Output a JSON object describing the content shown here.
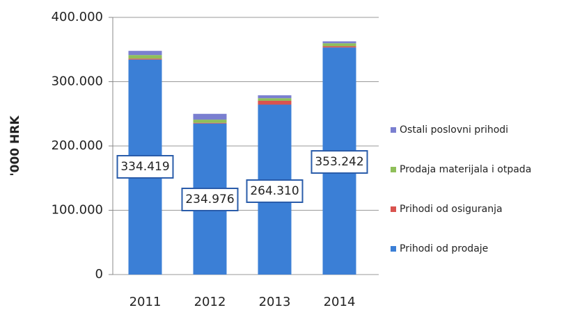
{
  "chart_data": {
    "type": "bar",
    "stacked": true,
    "y_label": "'000 HRK",
    "categories": [
      "2011",
      "2012",
      "2013",
      "2014"
    ],
    "series": [
      {
        "name": "Prihodi od prodaje",
        "color": "#3b7fd6",
        "values": [
          334419,
          234976,
          264310,
          353242
        ],
        "value_labels": [
          "334.419",
          "234.976",
          "264.310",
          "353.242"
        ]
      },
      {
        "name": "Prihodi od osiguranja",
        "color": "#d9534f",
        "values": [
          1500,
          1000,
          6000,
          2000
        ]
      },
      {
        "name": "Prodaja materijala i otpada",
        "color": "#8fbf5a",
        "values": [
          5500,
          5000,
          4000,
          4500
        ]
      },
      {
        "name": "Ostali poslovni prihodi",
        "color": "#7a7fd0",
        "values": [
          6500,
          9000,
          4500,
          3000
        ]
      }
    ],
    "ylim": [
      0,
      400000
    ],
    "yticks": [
      0,
      {
        "value": 100000,
        "label": "100.000"
      },
      {
        "value": 200000,
        "label": "200.000"
      },
      {
        "value": 300000,
        "label": "300.000"
      },
      {
        "value": 400000,
        "label": "400.000"
      }
    ],
    "grid": true,
    "legend": "right"
  }
}
